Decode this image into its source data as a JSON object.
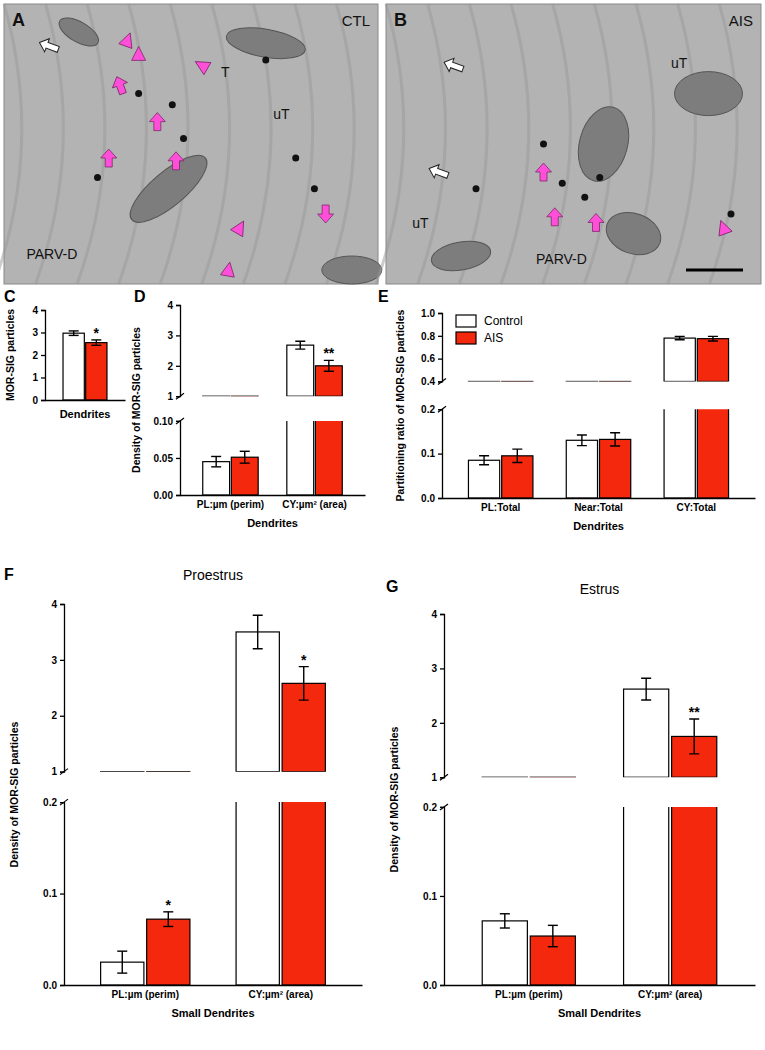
{
  "micrographs": [
    {
      "panel": "A",
      "condition": "CTL",
      "labels": [
        "T",
        "uT",
        "PARV-D"
      ]
    },
    {
      "panel": "B",
      "condition": "AIS",
      "labels": [
        "uT",
        "uT",
        "PARV-D"
      ]
    }
  ],
  "chart_data": [
    {
      "type": "bar",
      "panel": "C",
      "ylabel": "MOR-SIG particles",
      "xlabel": "Dendrites",
      "categories": [
        null
      ],
      "ylim": [
        0,
        4
      ],
      "yticks": [
        0,
        1,
        2,
        3,
        4
      ],
      "series": [
        {
          "color": "#ffffff",
          "values": [
            2.97
          ],
          "errors": [
            0.1
          ]
        },
        {
          "color": "#f4280c",
          "values": [
            2.55
          ],
          "errors": [
            0.12
          ],
          "significance": [
            "*"
          ]
        }
      ]
    },
    {
      "type": "bar",
      "panel": "D",
      "ylabel": "Density of MOR-SIG particles",
      "xlabel": "Dendrites",
      "categories": [
        "PL:µm (perim)",
        "CY:µm² (area)"
      ],
      "y_segments": [
        {
          "ylim": [
            0,
            0.1
          ],
          "yticks": [
            {
              "value": 0,
              "label": "0.00"
            },
            {
              "value": 0.05,
              "label": "0.05"
            },
            {
              "value": 0.1,
              "label": "0.10"
            }
          ]
        },
        {
          "ylim": [
            1,
            4
          ],
          "yticks": [
            1,
            2,
            3,
            4
          ]
        }
      ],
      "series": [
        {
          "color": "#ffffff",
          "values": [
            0.045,
            2.68
          ],
          "errors": [
            0.007,
            0.13
          ]
        },
        {
          "color": "#f4280c",
          "values": [
            0.051,
            2.0
          ],
          "errors": [
            0.008,
            0.18
          ],
          "significance": [
            null,
            "**"
          ]
        }
      ]
    },
    {
      "type": "bar",
      "panel": "E",
      "ylabel": "Partitioning ratio of MOR-SIG particles",
      "xlabel": "Dendrites",
      "categories": [
        "PL:Total",
        "Near:Total",
        "CY:Total"
      ],
      "legend": "top-left",
      "y_segments": [
        {
          "ylim": [
            0,
            0.2
          ],
          "yticks": [
            {
              "value": 0,
              "label": "0.0"
            },
            0.1,
            0.2
          ]
        },
        {
          "ylim": [
            0.4,
            1
          ],
          "yticks": [
            0.4,
            0.6,
            0.8,
            {
              "value": 1,
              "label": "1.0"
            }
          ]
        }
      ],
      "series": [
        {
          "name": "Control",
          "color": "#ffffff",
          "values": [
            0.085,
            0.13,
            0.78
          ],
          "errors": [
            0.01,
            0.012,
            0.015
          ]
        },
        {
          "name": "AIS",
          "color": "#f4280c",
          "values": [
            0.095,
            0.132,
            0.775
          ],
          "errors": [
            0.015,
            0.015,
            0.02
          ]
        }
      ]
    },
    {
      "type": "bar",
      "panel": "F",
      "title": "Proestrus",
      "ylabel": "Density of MOR-SIG particles",
      "xlabel": "Small Dendrites",
      "categories": [
        "PL:µm (perim)",
        "CY:µm² (area)"
      ],
      "y_segments": [
        {
          "ylim": [
            0,
            0.2
          ],
          "yticks": [
            {
              "value": 0,
              "label": "0.0"
            },
            0.1,
            0.2
          ]
        },
        {
          "ylim": [
            1,
            4
          ],
          "yticks": [
            1,
            2,
            3,
            4
          ]
        }
      ],
      "series": [
        {
          "color": "#ffffff",
          "values": [
            0.025,
            3.5
          ],
          "errors": [
            0.012,
            0.3
          ]
        },
        {
          "color": "#f4280c",
          "values": [
            0.072,
            2.58
          ],
          "errors": [
            0.008,
            0.3
          ],
          "significance": [
            "*",
            "*"
          ]
        }
      ]
    },
    {
      "type": "bar",
      "panel": "G",
      "title": "Estrus",
      "ylabel": "Density of MOR-SIG particles",
      "xlabel": "Small Dendrites",
      "categories": [
        "PL:µm (perim)",
        "CY:µm² (area)"
      ],
      "y_segments": [
        {
          "ylim": [
            0,
            0.2
          ],
          "yticks": [
            {
              "value": 0,
              "label": "0.0"
            },
            0.1,
            0.2
          ]
        },
        {
          "ylim": [
            1,
            4
          ],
          "yticks": [
            1,
            2,
            3,
            4
          ]
        }
      ],
      "series": [
        {
          "color": "#ffffff",
          "values": [
            0.072,
            2.62
          ],
          "errors": [
            0.008,
            0.2
          ]
        },
        {
          "color": "#f4280c",
          "values": [
            0.055,
            1.75
          ],
          "errors": [
            0.012,
            0.32
          ],
          "significance": [
            null,
            "**"
          ]
        }
      ]
    }
  ]
}
